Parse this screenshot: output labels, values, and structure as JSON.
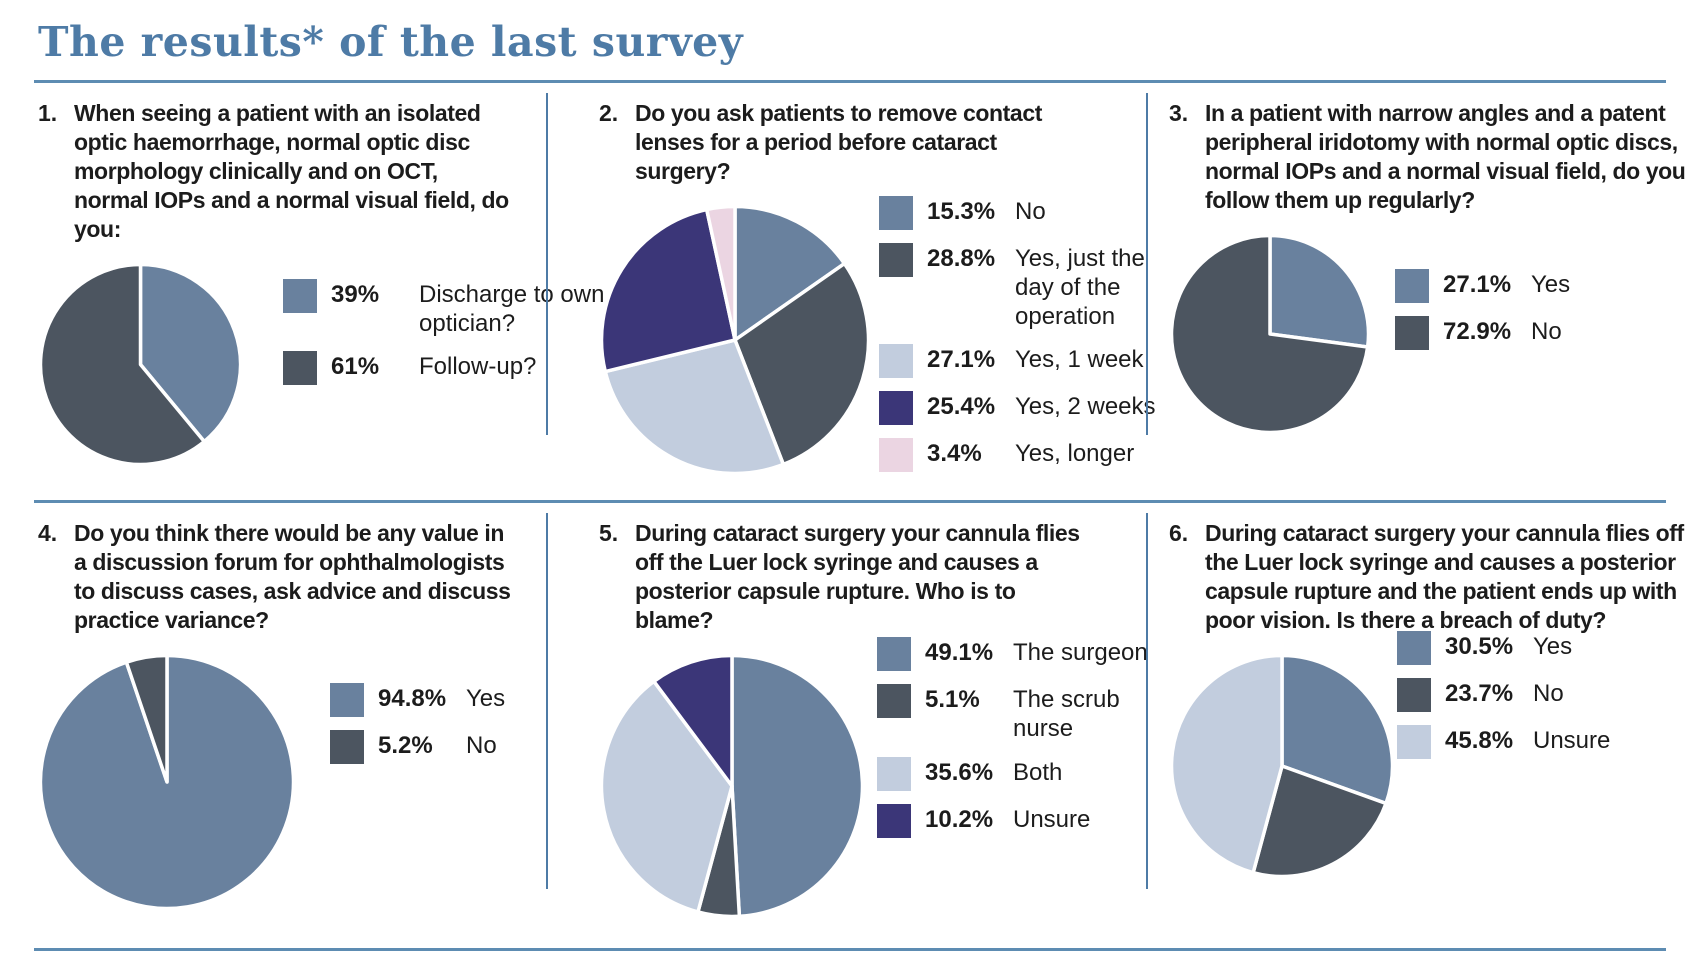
{
  "title": "The results* of the last survey",
  "accent_color": "#4e7ba6",
  "palette": {
    "steel_blue": "#69819e",
    "dark_slate": "#4c5560",
    "light_blue": "#c2cdde",
    "indigo": "#3b3678",
    "pale_pink": "#ebd5e2"
  },
  "questions": [
    {
      "number": "1.",
      "text": "When seeing a patient with an isolated optic haemorrhage, normal optic disc morphology clinically and on OCT, normal IOPs and a normal visual field, do you:",
      "slices": [
        {
          "pct": "39%",
          "value": 39,
          "label": "Discharge to own optician?",
          "color": "#69819e"
        },
        {
          "pct": "61%",
          "value": 61,
          "label": "Follow-up?",
          "color": "#4c5560"
        }
      ]
    },
    {
      "number": "2.",
      "text": "Do you ask patients to remove contact lenses for a period before cataract surgery?",
      "slices": [
        {
          "pct": "15.3%",
          "value": 15.3,
          "label": "No",
          "color": "#69819e"
        },
        {
          "pct": "28.8%",
          "value": 28.8,
          "label": "Yes, just the day of the operation",
          "color": "#4c5560"
        },
        {
          "pct": "27.1%",
          "value": 27.1,
          "label": "Yes, 1 week",
          "color": "#c2cdde"
        },
        {
          "pct": "25.4%",
          "value": 25.4,
          "label": "Yes, 2 weeks",
          "color": "#3b3678"
        },
        {
          "pct": "3.4%",
          "value": 3.4,
          "label": "Yes, longer",
          "color": "#ebd5e2"
        }
      ]
    },
    {
      "number": "3.",
      "text": "In a patient with narrow angles and a patent peripheral iridotomy with normal optic discs, normal IOPs and a normal visual field, do you follow them up regularly?",
      "slices": [
        {
          "pct": "27.1%",
          "value": 27.1,
          "label": "Yes",
          "color": "#69819e"
        },
        {
          "pct": "72.9%",
          "value": 72.9,
          "label": "No",
          "color": "#4c5560"
        }
      ]
    },
    {
      "number": "4.",
      "text": "Do you think there would be any value in a discussion forum for ophthalmologists to discuss cases, ask advice and discuss practice variance?",
      "slices": [
        {
          "pct": "94.8%",
          "value": 94.8,
          "label": "Yes",
          "color": "#69819e"
        },
        {
          "pct": "5.2%",
          "value": 5.2,
          "label": "No",
          "color": "#4c5560"
        }
      ]
    },
    {
      "number": "5.",
      "text": "During cataract surgery your cannula flies off the Luer lock syringe and causes a posterior capsule rupture. Who is to blame?",
      "slices": [
        {
          "pct": "49.1%",
          "value": 49.1,
          "label": "The surgeon",
          "color": "#69819e"
        },
        {
          "pct": "5.1%",
          "value": 5.1,
          "label": "The scrub nurse",
          "color": "#4c5560"
        },
        {
          "pct": "35.6%",
          "value": 35.6,
          "label": "Both",
          "color": "#c2cdde"
        },
        {
          "pct": "10.2%",
          "value": 10.2,
          "label": "Unsure",
          "color": "#3b3678"
        }
      ]
    },
    {
      "number": "6.",
      "text": "During cataract surgery your cannula flies off the Luer lock syringe and causes a posterior capsule rupture and the patient ends up with poor vision. Is there a breach of duty?",
      "slices": [
        {
          "pct": "30.5%",
          "value": 30.5,
          "label": "Yes",
          "color": "#69819e"
        },
        {
          "pct": "23.7%",
          "value": 23.7,
          "label": "No",
          "color": "#4c5560"
        },
        {
          "pct": "45.8%",
          "value": 45.8,
          "label": "Unsure",
          "color": "#c2cdde"
        }
      ]
    }
  ],
  "chart_data": [
    {
      "type": "pie",
      "title": "1. When seeing a patient with an isolated optic haemorrhage, normal optic disc morphology clinically and on OCT, normal IOPs and a normal visual field, do you:",
      "labels": [
        "Discharge to own optician?",
        "Follow-up?"
      ],
      "values": [
        39,
        61
      ],
      "value_labels": [
        "39%",
        "61%"
      ],
      "colors": [
        "#69819e",
        "#4c5560"
      ],
      "start_angle": "12 o'clock, clockwise",
      "legend_position": "right"
    },
    {
      "type": "pie",
      "title": "2. Do you ask patients to remove contact lenses for a period before cataract surgery?",
      "labels": [
        "No",
        "Yes, just the day of the operation",
        "Yes, 1 week",
        "Yes, 2 weeks",
        "Yes, longer"
      ],
      "values": [
        15.3,
        28.8,
        27.1,
        25.4,
        3.4
      ],
      "value_labels": [
        "15.3%",
        "28.8%",
        "27.1%",
        "25.4%",
        "3.4%"
      ],
      "colors": [
        "#69819e",
        "#4c5560",
        "#c2cdde",
        "#3b3678",
        "#ebd5e2"
      ],
      "start_angle": "12 o'clock, clockwise",
      "legend_position": "right"
    },
    {
      "type": "pie",
      "title": "3. In a patient with narrow angles and a patent peripheral iridotomy with normal optic discs, normal IOPs and a normal visual field, do you follow them up regularly?",
      "labels": [
        "Yes",
        "No"
      ],
      "values": [
        27.1,
        72.9
      ],
      "value_labels": [
        "27.1%",
        "72.9%"
      ],
      "colors": [
        "#69819e",
        "#4c5560"
      ],
      "start_angle": "12 o'clock, clockwise",
      "legend_position": "right"
    },
    {
      "type": "pie",
      "title": "4. Do you think there would be any value in a discussion forum for ophthalmologists to discuss cases, ask advice and discuss practice variance?",
      "labels": [
        "Yes",
        "No"
      ],
      "values": [
        94.8,
        5.2
      ],
      "value_labels": [
        "94.8%",
        "5.2%"
      ],
      "colors": [
        "#69819e",
        "#4c5560"
      ],
      "start_angle": "12 o'clock, clockwise",
      "legend_position": "right"
    },
    {
      "type": "pie",
      "title": "5. During cataract surgery your cannula flies off the Luer lock syringe and causes a posterior capsule rupture. Who is to blame?",
      "labels": [
        "The surgeon",
        "The scrub nurse",
        "Both",
        "Unsure"
      ],
      "values": [
        49.1,
        5.1,
        35.6,
        10.2
      ],
      "value_labels": [
        "49.1%",
        "5.1%",
        "35.6%",
        "10.2%"
      ],
      "colors": [
        "#69819e",
        "#4c5560",
        "#c2cdde",
        "#3b3678"
      ],
      "start_angle": "12 o'clock, clockwise",
      "legend_position": "right"
    },
    {
      "type": "pie",
      "title": "6. During cataract surgery your cannula flies off the Luer lock syringe and causes a posterior capsule rupture and the patient ends up with poor vision. Is there a breach of duty?",
      "labels": [
        "Yes",
        "No",
        "Unsure"
      ],
      "values": [
        30.5,
        23.7,
        45.8
      ],
      "value_labels": [
        "30.5%",
        "23.7%",
        "45.8%"
      ],
      "colors": [
        "#69819e",
        "#4c5560",
        "#c2cdde"
      ],
      "start_angle": "12 o'clock, clockwise",
      "legend_position": "right"
    }
  ]
}
